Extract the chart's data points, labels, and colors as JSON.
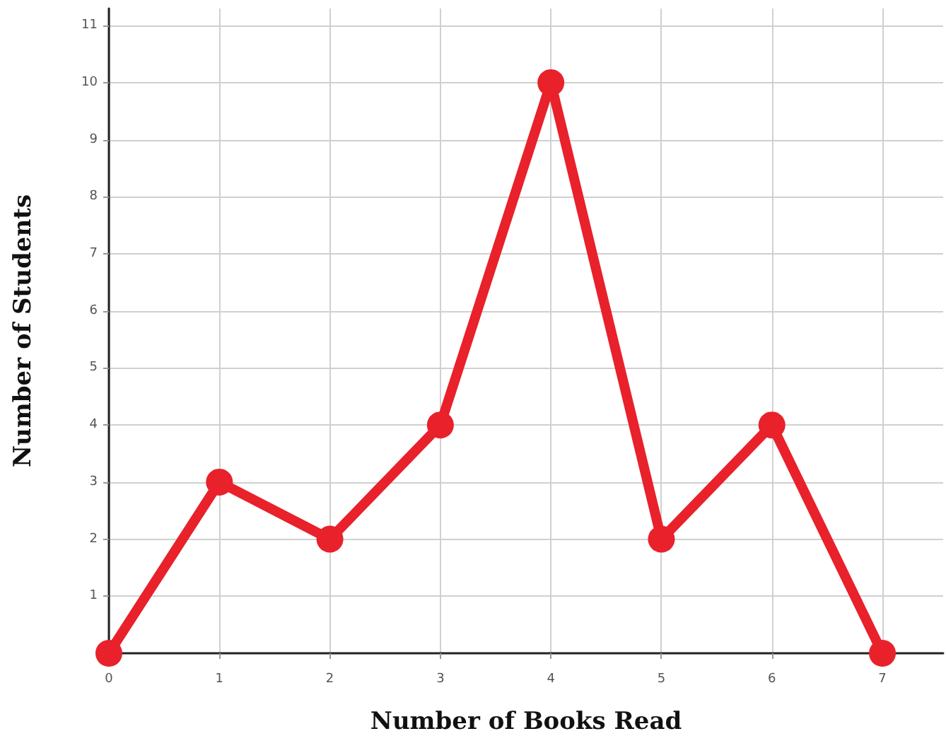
{
  "chart_data": {
    "type": "line",
    "xlabel": "Number of Books Read",
    "ylabel": "Number of Students",
    "x": [
      0,
      1,
      2,
      3,
      4,
      5,
      6,
      7
    ],
    "series": [
      {
        "color": "#e8212b",
        "values": [
          0,
          3,
          2,
          4,
          10,
          2,
          4,
          0
        ]
      }
    ],
    "xlim": [
      0,
      7.55
    ],
    "xticks": [
      0,
      1,
      2,
      3,
      4,
      5,
      6,
      7
    ],
    "ylim": [
      0,
      11.3
    ],
    "yticks": [
      1,
      2,
      3,
      4,
      5,
      6,
      7,
      8,
      9,
      10,
      11
    ],
    "grid": true,
    "marker": "circle",
    "line_style": "solid"
  }
}
